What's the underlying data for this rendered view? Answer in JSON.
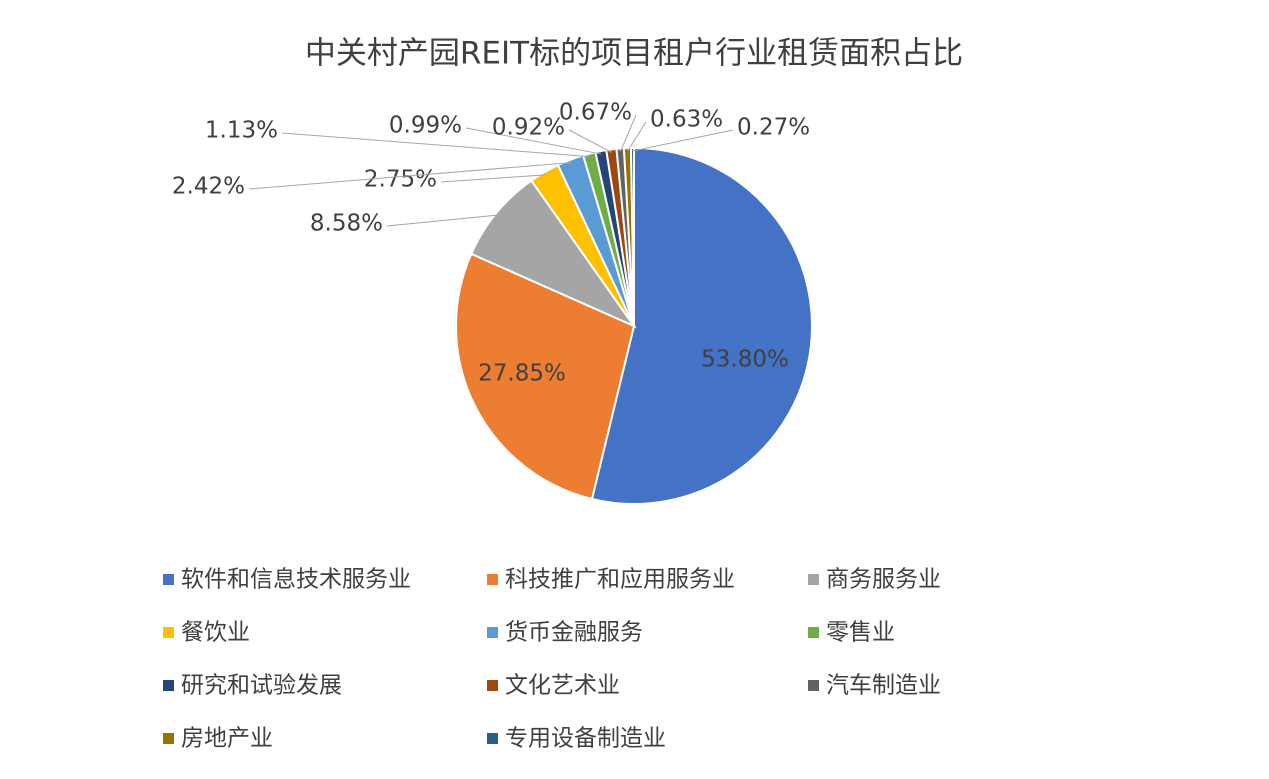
{
  "chart_data": {
    "type": "pie",
    "title": "中关村产园REIT标的项目租户行业租赁面积占比",
    "categories": [
      "软件和信息技术服务业",
      "科技推广和应用服务业",
      "商务服务业",
      "餐饮业",
      "货币金融服务",
      "零售业",
      "研究和试验发展",
      "文化艺术业",
      "汽车制造业",
      "房地产业",
      "专用设备制造业"
    ],
    "values": [
      53.8,
      27.85,
      8.58,
      2.75,
      2.42,
      1.13,
      0.99,
      0.92,
      0.67,
      0.63,
      0.27
    ],
    "value_labels": [
      "53.80%",
      "27.85%",
      "8.58%",
      "2.75%",
      "2.42%",
      "1.13%",
      "0.99%",
      "0.92%",
      "0.67%",
      "0.63%",
      "0.27%"
    ],
    "colors": [
      "#4472c4",
      "#ed7d31",
      "#a5a5a5",
      "#ffc000",
      "#5b9bd5",
      "#70ad47",
      "#264478",
      "#9e480e",
      "#636363",
      "#997300",
      "#255e91"
    ],
    "legend": "bottom"
  }
}
